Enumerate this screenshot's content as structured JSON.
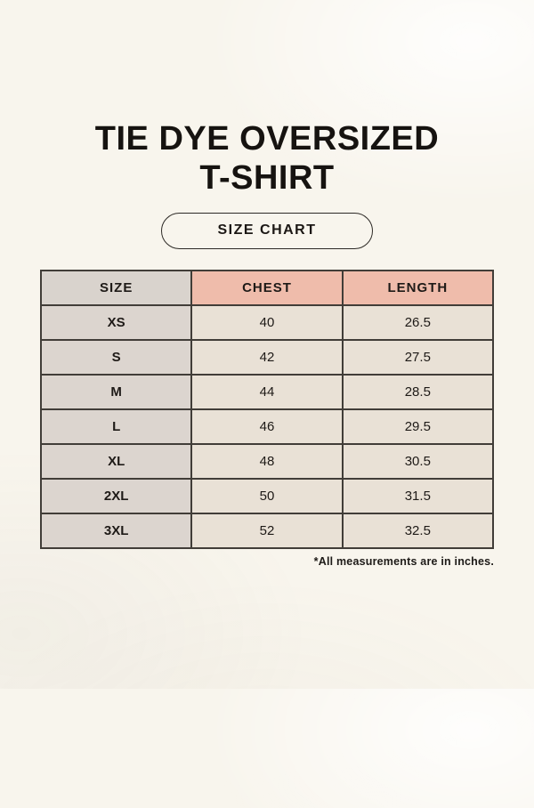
{
  "title": {
    "line1": "TIE DYE OVERSIZED",
    "line2": "T-SHIRT"
  },
  "badge": {
    "label": "SIZE CHART"
  },
  "table": {
    "columns": [
      "SIZE",
      "CHEST",
      "LENGTH"
    ],
    "rows": [
      [
        "XS",
        "40",
        "26.5"
      ],
      [
        "S",
        "42",
        "27.5"
      ],
      [
        "M",
        "44",
        "28.5"
      ],
      [
        "L",
        "46",
        "29.5"
      ],
      [
        "XL",
        "48",
        "30.5"
      ],
      [
        "2XL",
        "50",
        "31.5"
      ],
      [
        "3XL",
        "52",
        "32.5"
      ]
    ]
  },
  "footnote": "*All measurements are in inches.",
  "colors": {
    "page_background": "#f8f5ed",
    "text": "#161310",
    "table_border": "#413d38",
    "header_size_bg": "#d9d3cd",
    "header_measure_bg": "#efbcab",
    "body_size_bg": "#dcd5cf",
    "body_value_bg": "#e9e1d6"
  },
  "chart_data": {
    "type": "table",
    "title": "TIE DYE OVERSIZED T-SHIRT",
    "subtitle": "SIZE CHART",
    "columns": [
      "SIZE",
      "CHEST",
      "LENGTH"
    ],
    "rows": [
      {
        "size": "XS",
        "chest": 40,
        "length": 26.5
      },
      {
        "size": "S",
        "chest": 42,
        "length": 27.5
      },
      {
        "size": "M",
        "chest": 44,
        "length": 28.5
      },
      {
        "size": "L",
        "chest": 46,
        "length": 29.5
      },
      {
        "size": "XL",
        "chest": 48,
        "length": 30.5
      },
      {
        "size": "2XL",
        "chest": 50,
        "length": 31.5
      },
      {
        "size": "3XL",
        "chest": 52,
        "length": 32.5
      }
    ],
    "note": "*All measurements are in inches."
  }
}
